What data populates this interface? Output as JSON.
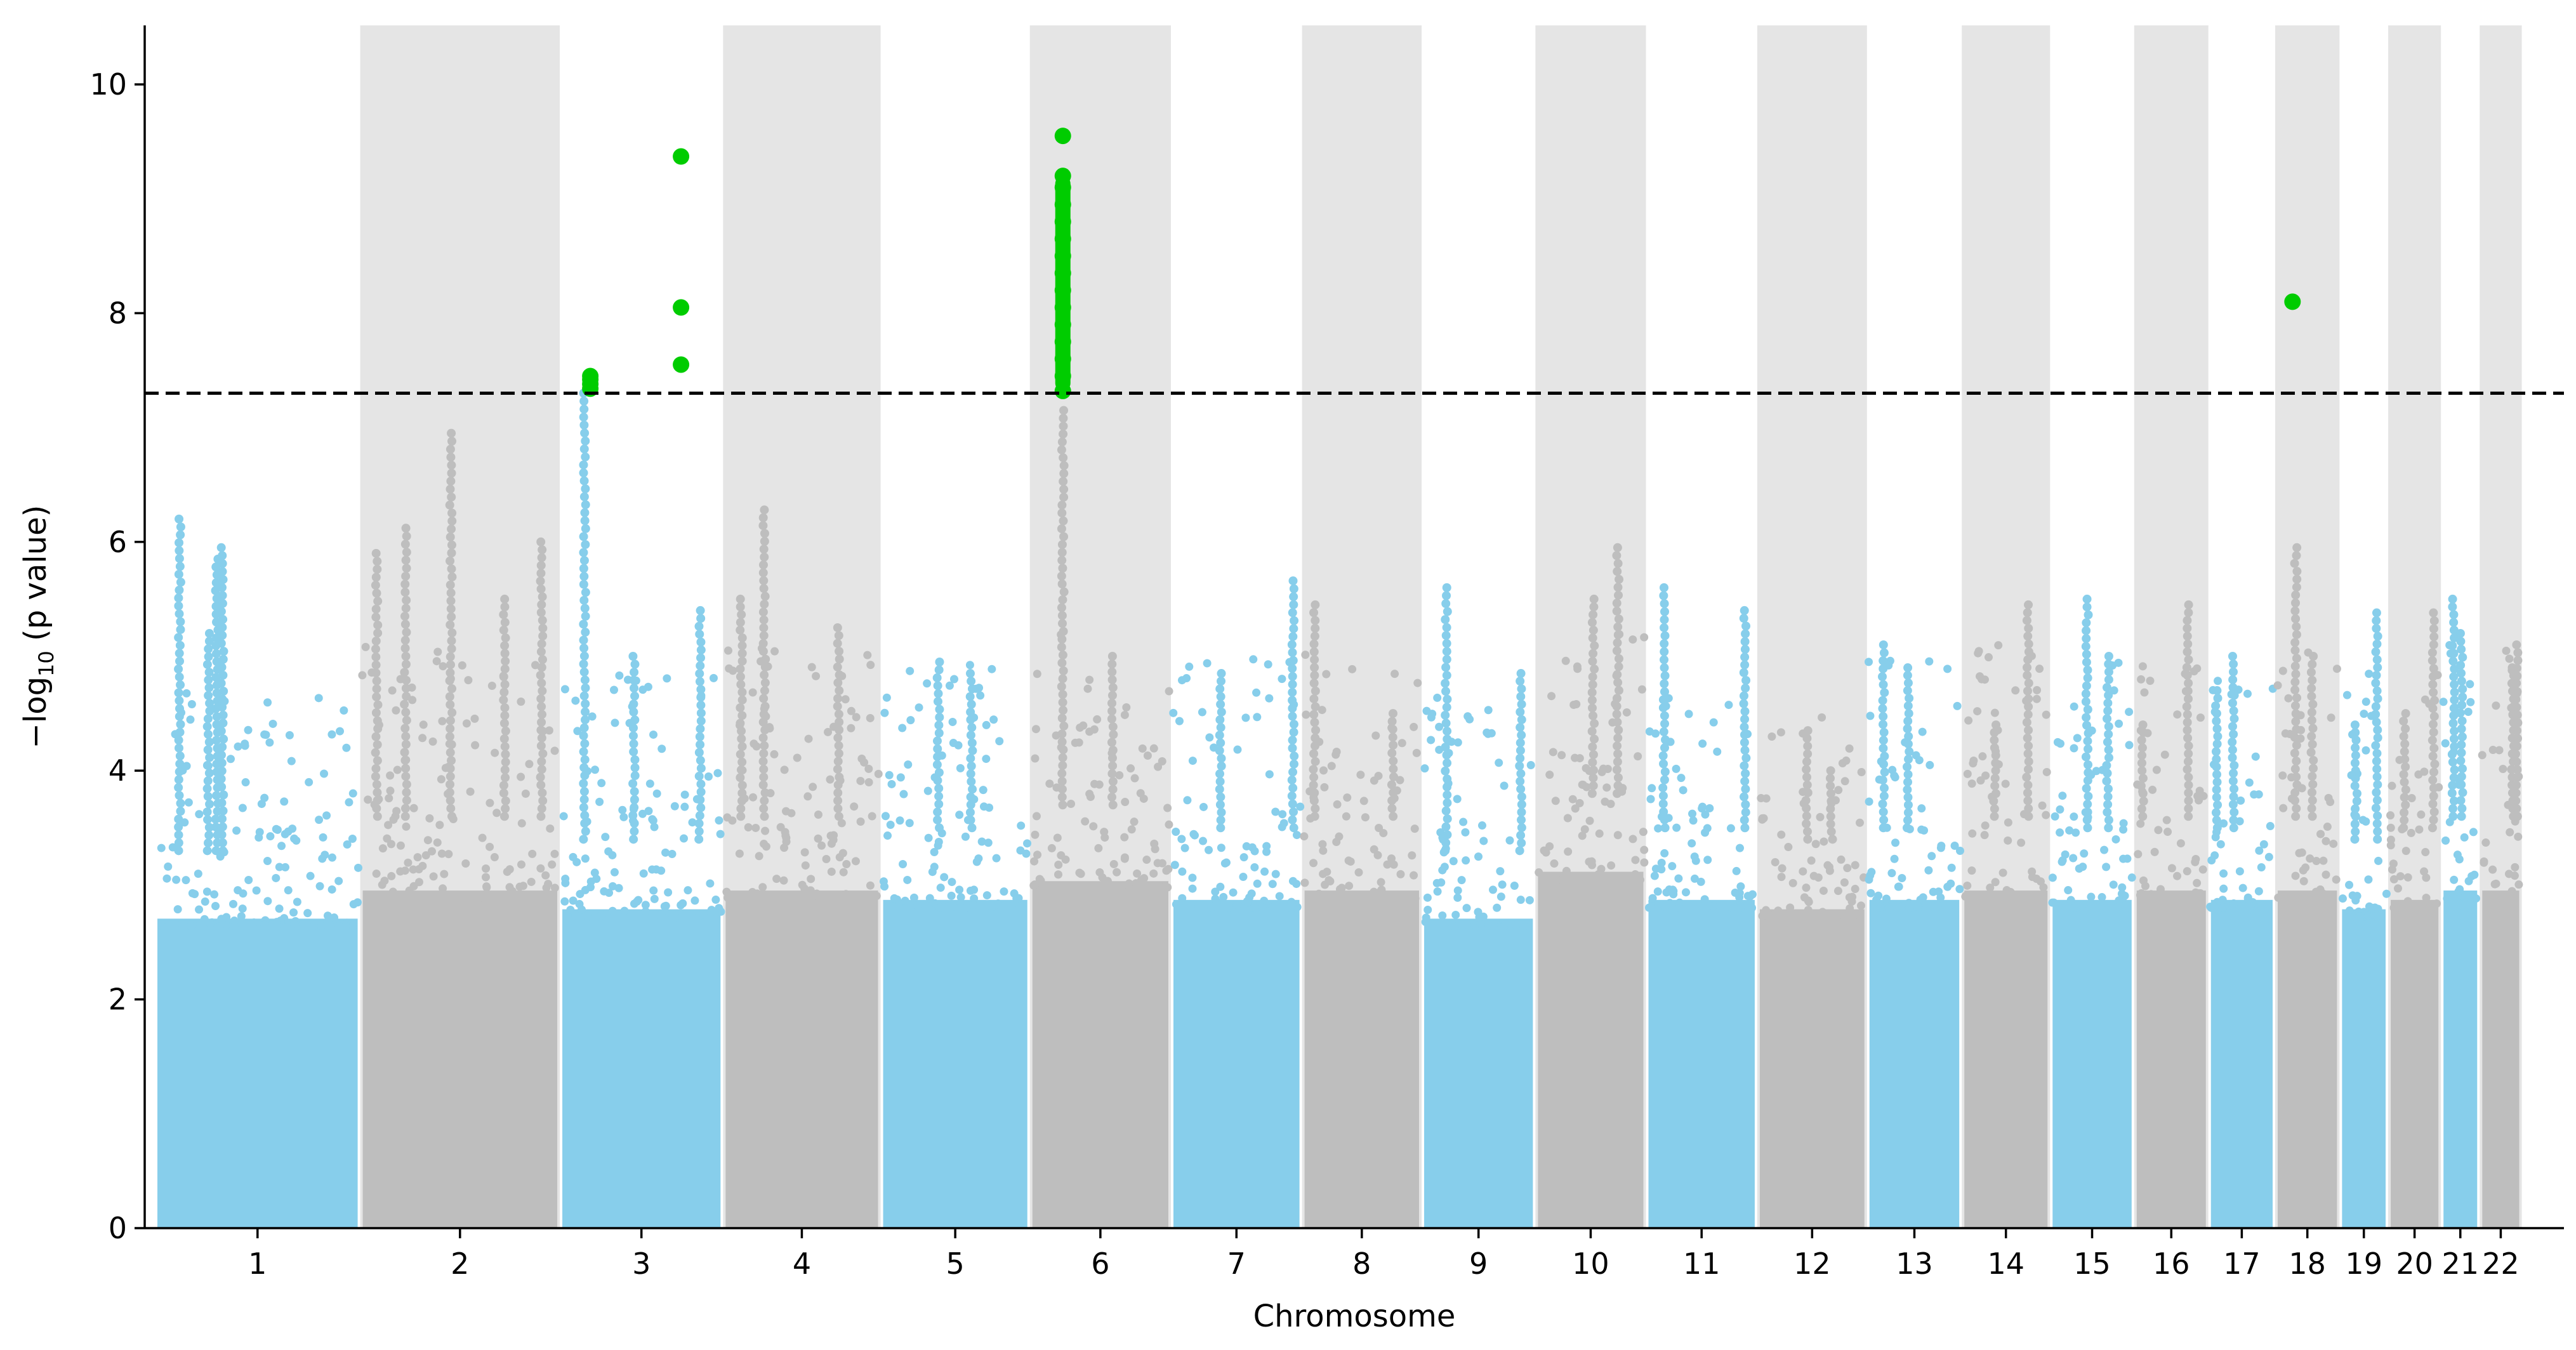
{
  "chart_data": {
    "type": "scatter",
    "subtype": "manhattan",
    "title": "",
    "xlabel": "Chromosome",
    "ylabel_prefix": "−log",
    "ylabel_subscript": "10",
    "ylabel_suffix": " (p value)",
    "ylim": [
      0,
      10.55
    ],
    "yticks": [
      0,
      2,
      4,
      6,
      8,
      10
    ],
    "grid": false,
    "legend": "none",
    "significance_threshold": 7.3,
    "colors": {
      "odd_chromosome": "#87ceeb",
      "even_chromosome": "#bebebe",
      "significant": "#00cc00",
      "shade": "#e5e5e5",
      "threshold": "#000000"
    },
    "chromosomes": [
      {
        "label": "1",
        "start": 0,
        "end": 249,
        "baseline": 3.3,
        "peaks": [
          [
            30,
            6.2
          ],
          [
            82,
            5.95
          ],
          [
            75,
            5.85
          ],
          [
            65,
            5.2
          ]
        ]
      },
      {
        "label": "2",
        "start": 249,
        "end": 491,
        "baseline": 3.6,
        "peaks": [
          [
            55,
            6.12
          ],
          [
            110,
            6.95
          ],
          [
            175,
            5.5
          ],
          [
            220,
            6.0
          ],
          [
            20,
            5.9
          ]
        ]
      },
      {
        "label": "3",
        "start": 491,
        "end": 689,
        "baseline": 3.4,
        "peaks": [
          [
            30,
            7.3
          ],
          [
            90,
            5.0
          ],
          [
            170,
            5.4
          ]
        ]
      },
      {
        "label": "4",
        "start": 689,
        "end": 880,
        "baseline": 3.6,
        "peaks": [
          [
            50,
            6.28
          ],
          [
            22,
            5.5
          ],
          [
            140,
            5.25
          ]
        ]
      },
      {
        "label": "5",
        "start": 880,
        "end": 1061,
        "baseline": 3.5,
        "peaks": [
          [
            70,
            4.95
          ],
          [
            110,
            4.85
          ]
        ]
      },
      {
        "label": "6",
        "start": 1061,
        "end": 1232,
        "baseline": 3.7,
        "peaks": [
          [
            40,
            7.15
          ],
          [
            100,
            5.0
          ]
        ]
      },
      {
        "label": "7",
        "start": 1232,
        "end": 1391,
        "baseline": 3.5,
        "peaks": [
          [
            148,
            5.66
          ],
          [
            60,
            4.85
          ]
        ]
      },
      {
        "label": "8",
        "start": 1391,
        "end": 1536,
        "baseline": 3.6,
        "peaks": [
          [
            15,
            5.45
          ],
          [
            110,
            4.5
          ]
        ]
      },
      {
        "label": "9",
        "start": 1536,
        "end": 1674,
        "baseline": 3.3,
        "peaks": [
          [
            30,
            5.6
          ],
          [
            120,
            4.85
          ]
        ]
      },
      {
        "label": "10",
        "start": 1674,
        "end": 1808,
        "baseline": 3.8,
        "peaks": [
          [
            100,
            5.95
          ],
          [
            70,
            5.5
          ]
        ]
      },
      {
        "label": "11",
        "start": 1808,
        "end": 1943,
        "baseline": 3.5,
        "peaks": [
          [
            22,
            5.6
          ],
          [
            120,
            5.4
          ]
        ]
      },
      {
        "label": "12",
        "start": 1943,
        "end": 2076,
        "baseline": 3.4,
        "peaks": [
          [
            60,
            4.35
          ],
          [
            90,
            4.0
          ]
        ]
      },
      {
        "label": "13",
        "start": 2076,
        "end": 2191,
        "baseline": 3.5,
        "peaks": [
          [
            20,
            5.1
          ],
          [
            50,
            4.9
          ]
        ]
      },
      {
        "label": "14",
        "start": 2191,
        "end": 2298,
        "baseline": 3.6,
        "peaks": [
          [
            80,
            5.45
          ],
          [
            40,
            4.4
          ]
        ]
      },
      {
        "label": "15",
        "start": 2298,
        "end": 2400,
        "baseline": 3.5,
        "peaks": [
          [
            45,
            5.5
          ],
          [
            70,
            5.0
          ]
        ]
      },
      {
        "label": "16",
        "start": 2400,
        "end": 2490,
        "baseline": 3.6,
        "peaks": [
          [
            65,
            5.45
          ],
          [
            10,
            4.4
          ]
        ]
      },
      {
        "label": "17",
        "start": 2490,
        "end": 2571,
        "baseline": 3.5,
        "peaks": [
          [
            30,
            5.0
          ],
          [
            10,
            4.7
          ]
        ]
      },
      {
        "label": "18",
        "start": 2571,
        "end": 2649,
        "baseline": 3.6,
        "peaks": [
          [
            25,
            5.95
          ],
          [
            45,
            5.0
          ]
        ]
      },
      {
        "label": "19",
        "start": 2649,
        "end": 2708,
        "baseline": 3.4,
        "peaks": [
          [
            45,
            5.38
          ],
          [
            20,
            4.4
          ]
        ]
      },
      {
        "label": "20",
        "start": 2708,
        "end": 2772,
        "baseline": 3.5,
        "peaks": [
          [
            55,
            5.38
          ],
          [
            20,
            4.5
          ]
        ]
      },
      {
        "label": "21",
        "start": 2772,
        "end": 2819,
        "baseline": 3.6,
        "peaks": [
          [
            15,
            5.5
          ],
          [
            25,
            5.2
          ]
        ]
      },
      {
        "label": "22",
        "start": 2819,
        "end": 2870,
        "baseline": 3.6,
        "peaks": [
          [
            45,
            5.1
          ],
          [
            40,
            4.9
          ]
        ]
      }
    ],
    "significant_points": [
      {
        "chromosome": "3",
        "x": 528,
        "y": 7.45
      },
      {
        "chromosome": "3",
        "x": 528,
        "y": 7.42
      },
      {
        "chromosome": "3",
        "x": 528,
        "y": 7.38
      },
      {
        "chromosome": "3",
        "x": 528,
        "y": 7.34
      },
      {
        "chromosome": "3",
        "x": 638,
        "y": 9.37
      },
      {
        "chromosome": "3",
        "x": 638,
        "y": 8.05
      },
      {
        "chromosome": "3",
        "x": 638,
        "y": 7.55
      },
      {
        "chromosome": "6",
        "x": 1101,
        "y": 9.55
      },
      {
        "chromosome": "6",
        "x": 1101,
        "y": 9.2
      },
      {
        "chromosome": "6",
        "x": 1101,
        "y": 9.1
      },
      {
        "chromosome": "6",
        "x": 1101,
        "y": 8.95
      },
      {
        "chromosome": "6",
        "x": 1101,
        "y": 8.8
      },
      {
        "chromosome": "6",
        "x": 1101,
        "y": 8.65
      },
      {
        "chromosome": "6",
        "x": 1101,
        "y": 8.5
      },
      {
        "chromosome": "6",
        "x": 1101,
        "y": 8.35
      },
      {
        "chromosome": "6",
        "x": 1101,
        "y": 8.2
      },
      {
        "chromosome": "6",
        "x": 1101,
        "y": 8.05
      },
      {
        "chromosome": "6",
        "x": 1101,
        "y": 7.9
      },
      {
        "chromosome": "6",
        "x": 1101,
        "y": 7.75
      },
      {
        "chromosome": "6",
        "x": 1101,
        "y": 7.6
      },
      {
        "chromosome": "6",
        "x": 1101,
        "y": 7.45
      },
      {
        "chromosome": "6",
        "x": 1101,
        "y": 7.32
      },
      {
        "chromosome": "18",
        "x": 2592,
        "y": 8.1
      }
    ]
  }
}
